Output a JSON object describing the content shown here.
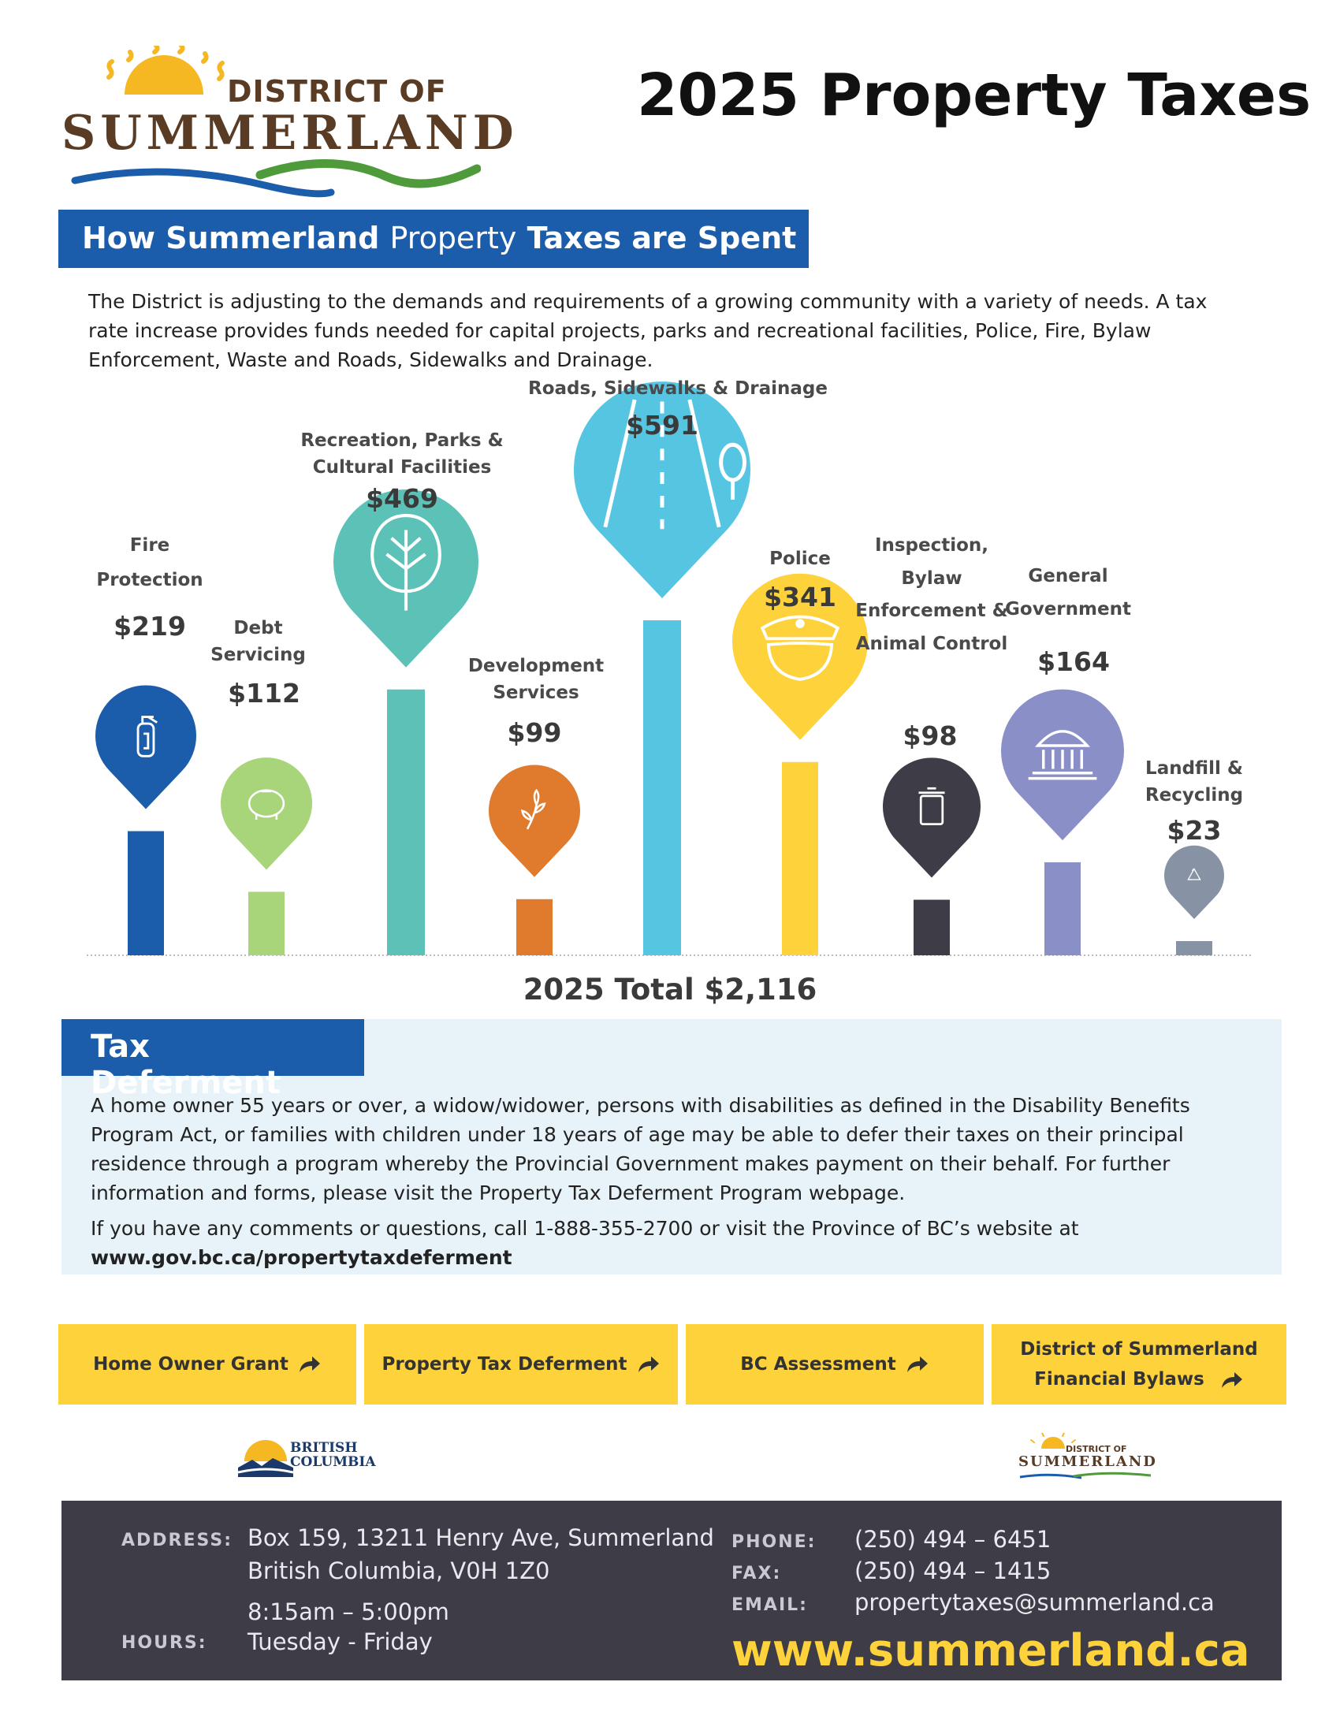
{
  "logo": {
    "line1": "DISTRICT OF",
    "line2": "SUMMERLAND",
    "colors": {
      "sun": "#f5b823",
      "text": "#5a3b24",
      "wave_blue": "#1b5cab",
      "wave_green": "#4f9a3b"
    }
  },
  "title": "2025 Property Taxes",
  "spent_section": {
    "banner_bold": "How Summerland",
    "banner_light": "Property",
    "banner_bold_2": "Taxes are Spent",
    "intro": "The District is adjusting to the demands and requirements of a growing community with a variety of needs. A tax rate increase provides funds needed for capital projects, parks and recreational facilities, Police, Fire, Bylaw Enforcement, Waste and Roads, Sidewalks and Drainage."
  },
  "chart_data": {
    "type": "bar",
    "categories": [
      "Fire Protection",
      "Debt Servicing",
      "Recreation, Parks & Cultural Facilities",
      "Development Services",
      "Roads, Sidewalks & Drainage",
      "Police",
      "Inspection, Bylaw Enforcement & Animal Control",
      "General Government",
      "Landfill & Recycling"
    ],
    "value_labels": [
      "$219",
      "$112",
      "$469",
      "$99",
      "$591",
      "$341",
      "$98",
      "$164",
      "$23"
    ],
    "values": [
      219,
      112,
      469,
      99,
      591,
      341,
      98,
      164,
      23
    ],
    "colors": [
      "#1b5cab",
      "#a8d47a",
      "#5cc2b8",
      "#e07a2c",
      "#56c5e2",
      "#fdd23a",
      "#3d3c47",
      "#8a8fc7",
      "#8793a4"
    ],
    "icons": [
      "fire-extinguisher-icon",
      "piggy-bank-icon",
      "tree-icon",
      "sprout-icon",
      "road-icon",
      "police-hat-icon",
      "garbage-bin-icon",
      "government-building-icon",
      "recycle-icon"
    ],
    "total_label": "2025 Total $2,116"
  },
  "deferment": {
    "banner": "Tax Deferment",
    "body": "A home owner 55 years or over, a widow/widower, persons with disabilities as defined in the Disability Benefits Program Act, or families with children under 18 years of age may be able to defer their taxes on their principal residence through a program whereby the Provincial Government makes payment on their behalf. For further information and forms, please visit the Property Tax Deferment Program webpage.",
    "contact": "If you have any comments or questions, call 1-888-355-2700 or visit the Province of BC’s website at",
    "link": "www.gov.bc.ca/propertytaxdeferment"
  },
  "buttons": [
    {
      "label": "Home Owner Grant"
    },
    {
      "label": "Property Tax Deferment"
    },
    {
      "label": "BC Assessment"
    },
    {
      "label_line1": "District of Summerland",
      "label_line2": "Financial Bylaws"
    }
  ],
  "bc_logo": {
    "line1": "BRITISH",
    "line2": "COLUMBIA"
  },
  "small_logo": {
    "line1": "DISTRICT OF",
    "line2": "SUMMERLAND"
  },
  "footer": {
    "address_label": "ADDRESS:",
    "address_line1": "Box 159, 13211 Henry Ave, Summerland",
    "address_line2": "British Columbia, V0H 1Z0",
    "hours_label": "HOURS:",
    "hours_line1": "8:15am – 5:00pm",
    "hours_line2": "Tuesday - Friday",
    "phone_label": "PHONE:",
    "phone": "(250) 494 – 6451",
    "fax_label": "FAX:",
    "fax": "(250) 494 – 1415",
    "email_label": "EMAIL:",
    "email": "propertytaxes@summerland.ca",
    "website": "www.summerland.ca"
  }
}
